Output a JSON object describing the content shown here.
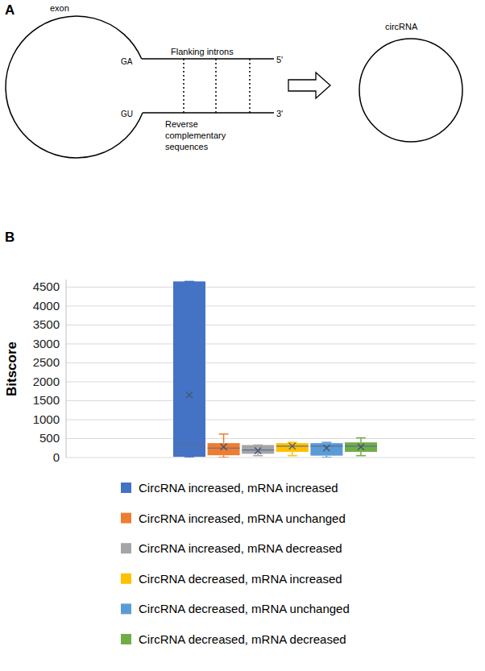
{
  "diagram": {
    "panel_label": "A",
    "exon_label": "exon",
    "donor": "GA",
    "acceptor": "GU",
    "flank_label": "Flanking introns",
    "five_prime": "5'",
    "three_prime": "3'",
    "pairing_label": [
      "Reverse",
      "complementary",
      "sequences"
    ],
    "product_label": "circRNA"
  },
  "chart_data": {
    "panel_label": "B",
    "type": "box",
    "y_label": "Bitscore",
    "ylim": [
      0,
      4700
    ],
    "yticks": [
      0,
      500,
      1000,
      1500,
      2000,
      2500,
      3000,
      3500,
      4000,
      4500
    ],
    "grid": true,
    "tick_labels": "y",
    "legend": "bottom",
    "series": [
      {
        "name": "CircRNA increased, mRNA increased",
        "color": "#4472c4",
        "min": 0,
        "q1": 20,
        "median": 350,
        "q3": 4650,
        "max": 4650,
        "mean": 1650
      },
      {
        "name": "CircRNA increased, mRNA unchanged",
        "color": "#ed7d31",
        "min": 0,
        "q1": 60,
        "median": 250,
        "q3": 380,
        "max": 620,
        "mean": 280
      },
      {
        "name": "CircRNA increased, mRNA decreased",
        "color": "#a5a5a5",
        "min": 50,
        "q1": 100,
        "median": 200,
        "q3": 330,
        "max": 330,
        "mean": 180
      },
      {
        "name": "CircRNA decreased, mRNA increased",
        "color": "#ffc000",
        "min": 50,
        "q1": 150,
        "median": 300,
        "q3": 380,
        "max": 400,
        "mean": 300
      },
      {
        "name": "CircRNA decreased, mRNA unchanged",
        "color": "#5b9bd5",
        "min": 0,
        "q1": 50,
        "median": 300,
        "q3": 380,
        "max": 400,
        "mean": 250
      },
      {
        "name": "CircRNA decreased, mRNA decreased",
        "color": "#70ad47",
        "min": 50,
        "q1": 150,
        "median": 300,
        "q3": 400,
        "max": 520,
        "mean": 280
      }
    ]
  }
}
